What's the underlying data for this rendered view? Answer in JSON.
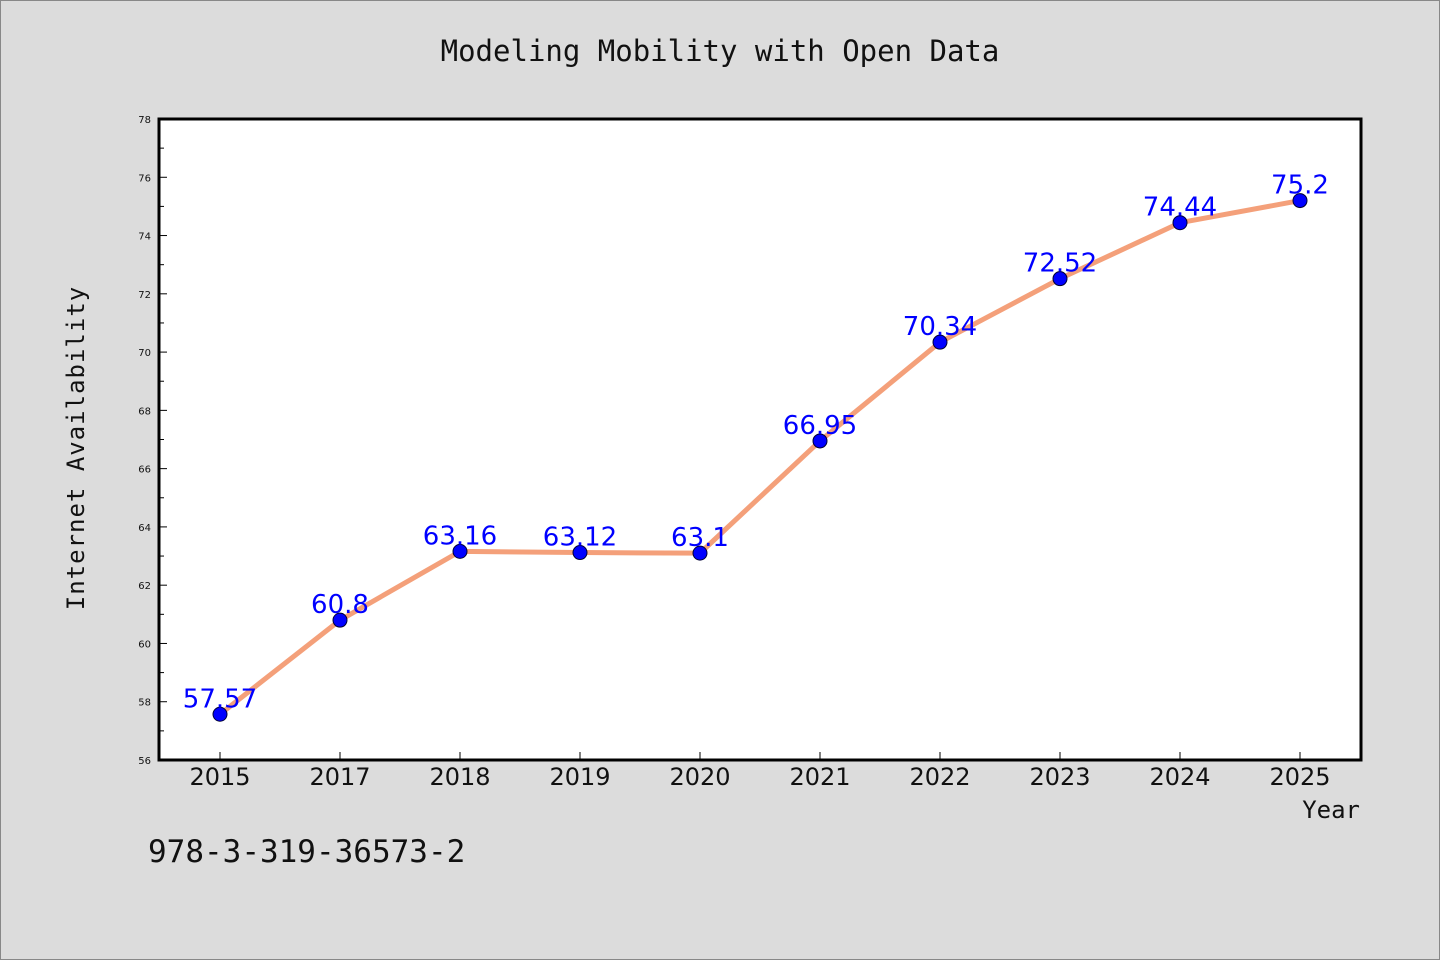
{
  "chart_data": {
    "type": "line",
    "title": "Modeling Mobility with Open Data",
    "xlabel": "Year",
    "ylabel": "Internet Availability",
    "categories": [
      "2015",
      "2017",
      "2018",
      "2019",
      "2020",
      "2021",
      "2022",
      "2023",
      "2024",
      "2025"
    ],
    "series": [
      {
        "values": [
          57.57,
          60.8,
          63.16,
          63.12,
          63.1,
          66.95,
          70.34,
          72.52,
          74.44,
          75.2
        ],
        "labels": [
          "57.57",
          "60.8",
          "63.16",
          "63.12",
          "63.1",
          "66.95",
          "70.34",
          "72.52",
          "74.44",
          "75.2"
        ]
      }
    ],
    "ylim": [
      56,
      78
    ],
    "yticks": [
      56,
      58,
      60,
      62,
      64,
      66,
      68,
      70,
      72,
      74,
      76,
      78
    ],
    "grid": false,
    "legend": "none",
    "colors": {
      "line": "#f4a07a",
      "marker": "#0000ff",
      "data_label": "#0000ff",
      "background": "#dcdcdc",
      "plot_area": "#ffffff"
    }
  },
  "footnote": "978-3-319-36573-2"
}
